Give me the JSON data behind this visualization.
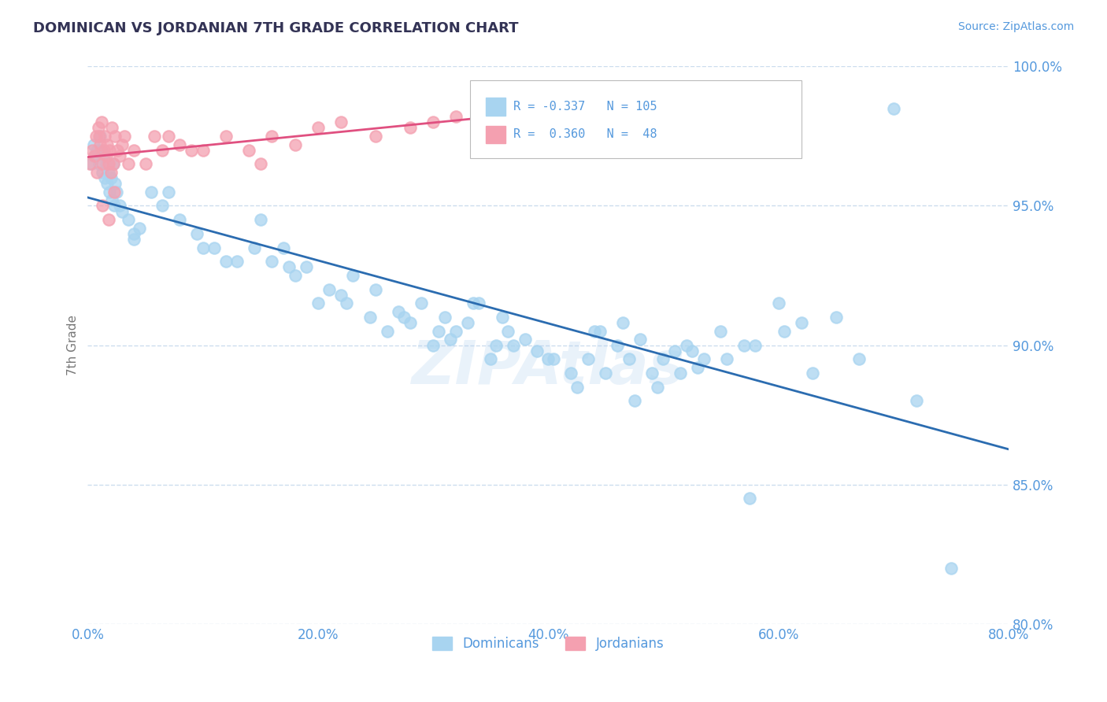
{
  "title": "DOMINICAN VS JORDANIAN 7TH GRADE CORRELATION CHART",
  "source": "Source: ZipAtlas.com",
  "ylabel": "7th Grade",
  "xlim": [
    0.0,
    80.0
  ],
  "ylim": [
    80.0,
    100.0
  ],
  "dominican_color": "#a8d4f0",
  "jordanian_color": "#f4a0b0",
  "trend_dominican_color": "#2b6cb0",
  "trend_jordanian_color": "#e05080",
  "title_color": "#333355",
  "axis_color": "#5599dd",
  "grid_color": "#ccddee",
  "background_color": "#ffffff",
  "watermark": "ZIPAtlas",
  "dominican_scatter_x": [
    0.3,
    0.5,
    0.6,
    0.8,
    1.0,
    1.1,
    1.2,
    1.3,
    1.4,
    1.5,
    1.6,
    1.7,
    1.8,
    1.9,
    2.0,
    2.1,
    2.2,
    2.3,
    2.4,
    2.5,
    2.8,
    3.0,
    3.5,
    4.0,
    4.5,
    5.5,
    6.5,
    8.0,
    9.5,
    11.0,
    13.0,
    15.0,
    16.0,
    17.0,
    18.0,
    19.0,
    20.0,
    21.0,
    22.0,
    23.0,
    24.5,
    26.0,
    27.0,
    28.0,
    29.0,
    30.0,
    31.0,
    32.0,
    33.0,
    34.0,
    35.0,
    36.5,
    37.0,
    38.0,
    39.0,
    40.0,
    42.0,
    43.5,
    44.0,
    45.0,
    46.0,
    47.0,
    48.0,
    49.0,
    50.0,
    51.0,
    52.0,
    53.0,
    55.0,
    57.0,
    60.0,
    62.0,
    65.0,
    70.0,
    10.0,
    17.5,
    22.5,
    25.0,
    30.5,
    36.0,
    40.5,
    44.5,
    46.5,
    52.5,
    55.5,
    58.0,
    60.5,
    63.0,
    67.0,
    72.0,
    75.0,
    4.0,
    7.0,
    12.0,
    14.5,
    27.5,
    31.5,
    33.5,
    35.5,
    42.5,
    47.5,
    49.5,
    51.5,
    53.5,
    57.5
  ],
  "dominican_scatter_y": [
    96.5,
    97.2,
    96.8,
    97.0,
    96.5,
    97.5,
    97.0,
    96.2,
    96.8,
    96.0,
    96.5,
    95.8,
    96.2,
    95.5,
    96.0,
    95.2,
    96.5,
    95.0,
    95.8,
    95.5,
    95.0,
    94.8,
    94.5,
    93.8,
    94.2,
    95.5,
    95.0,
    94.5,
    94.0,
    93.5,
    93.0,
    94.5,
    93.0,
    93.5,
    92.5,
    92.8,
    91.5,
    92.0,
    91.8,
    92.5,
    91.0,
    90.5,
    91.2,
    90.8,
    91.5,
    90.0,
    91.0,
    90.5,
    90.8,
    91.5,
    89.5,
    90.5,
    90.0,
    90.2,
    89.8,
    89.5,
    89.0,
    89.5,
    90.5,
    89.0,
    90.0,
    89.5,
    90.2,
    89.0,
    89.5,
    89.8,
    90.0,
    89.2,
    90.5,
    90.0,
    91.5,
    90.8,
    91.0,
    98.5,
    93.5,
    92.8,
    91.5,
    92.0,
    90.5,
    91.0,
    89.5,
    90.5,
    90.8,
    89.8,
    89.5,
    90.0,
    90.5,
    89.0,
    89.5,
    88.0,
    82.0,
    94.0,
    95.5,
    93.0,
    93.5,
    91.0,
    90.2,
    91.5,
    90.0,
    88.5,
    88.0,
    88.5,
    89.0,
    89.5,
    84.5
  ],
  "jordanian_scatter_x": [
    0.2,
    0.4,
    0.6,
    0.7,
    0.8,
    0.9,
    1.0,
    1.1,
    1.2,
    1.3,
    1.4,
    1.5,
    1.6,
    1.7,
    1.8,
    1.9,
    2.0,
    2.1,
    2.2,
    2.4,
    2.6,
    2.8,
    3.0,
    3.2,
    3.5,
    4.0,
    5.0,
    5.8,
    6.5,
    8.0,
    10.0,
    12.0,
    14.0,
    16.0,
    18.0,
    20.0,
    22.0,
    25.0,
    28.0,
    32.0,
    36.0,
    1.3,
    1.8,
    2.3,
    7.0,
    9.0,
    15.0,
    30.0
  ],
  "jordanian_scatter_y": [
    96.5,
    97.0,
    96.8,
    97.5,
    96.2,
    97.8,
    97.5,
    97.2,
    98.0,
    96.5,
    97.0,
    97.5,
    96.8,
    97.2,
    96.5,
    97.0,
    96.2,
    97.8,
    96.5,
    97.5,
    97.0,
    96.8,
    97.2,
    97.5,
    96.5,
    97.0,
    96.5,
    97.5,
    97.0,
    97.2,
    97.0,
    97.5,
    97.0,
    97.5,
    97.2,
    97.8,
    98.0,
    97.5,
    97.8,
    98.2,
    98.5,
    95.0,
    94.5,
    95.5,
    97.5,
    97.0,
    96.5,
    98.0
  ]
}
